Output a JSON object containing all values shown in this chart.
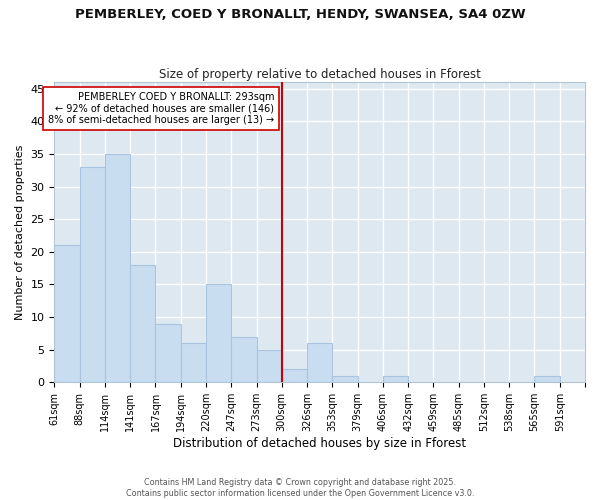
{
  "title": "PEMBERLEY, COED Y BRONALLT, HENDY, SWANSEA, SA4 0ZW",
  "subtitle": "Size of property relative to detached houses in Fforest",
  "xlabel": "Distribution of detached houses by size in Fforest",
  "ylabel": "Number of detached properties",
  "bar_color": "#c8ddf0",
  "bar_edgecolor": "#aac4de",
  "fig_facecolor": "#ffffff",
  "axes_facecolor": "#dde8f0",
  "grid_color": "#ffffff",
  "vline_x_index": 9,
  "vline_color": "#cc0000",
  "annotation_text": "PEMBERLEY COED Y BRONALLT: 293sqm\n← 92% of detached houses are smaller (146)\n8% of semi-detached houses are larger (13) →",
  "annotation_box_facecolor": "#ffffff",
  "annotation_box_edgecolor": "#cc0000",
  "footer_text": "Contains HM Land Registry data © Crown copyright and database right 2025.\nContains public sector information licensed under the Open Government Licence v3.0.",
  "bin_labels": [
    "61sqm",
    "88sqm",
    "114sqm",
    "141sqm",
    "167sqm",
    "194sqm",
    "220sqm",
    "247sqm",
    "273sqm",
    "300sqm",
    "326sqm",
    "353sqm",
    "379sqm",
    "406sqm",
    "432sqm",
    "459sqm",
    "485sqm",
    "512sqm",
    "538sqm",
    "565sqm",
    "591sqm"
  ],
  "counts": [
    21,
    33,
    35,
    18,
    9,
    6,
    15,
    7,
    5,
    2,
    6,
    1,
    0,
    1,
    0,
    0,
    0,
    0,
    0,
    1,
    0
  ],
  "ylim": [
    0,
    46
  ],
  "yticks": [
    0,
    5,
    10,
    15,
    20,
    25,
    30,
    35,
    40,
    45
  ]
}
